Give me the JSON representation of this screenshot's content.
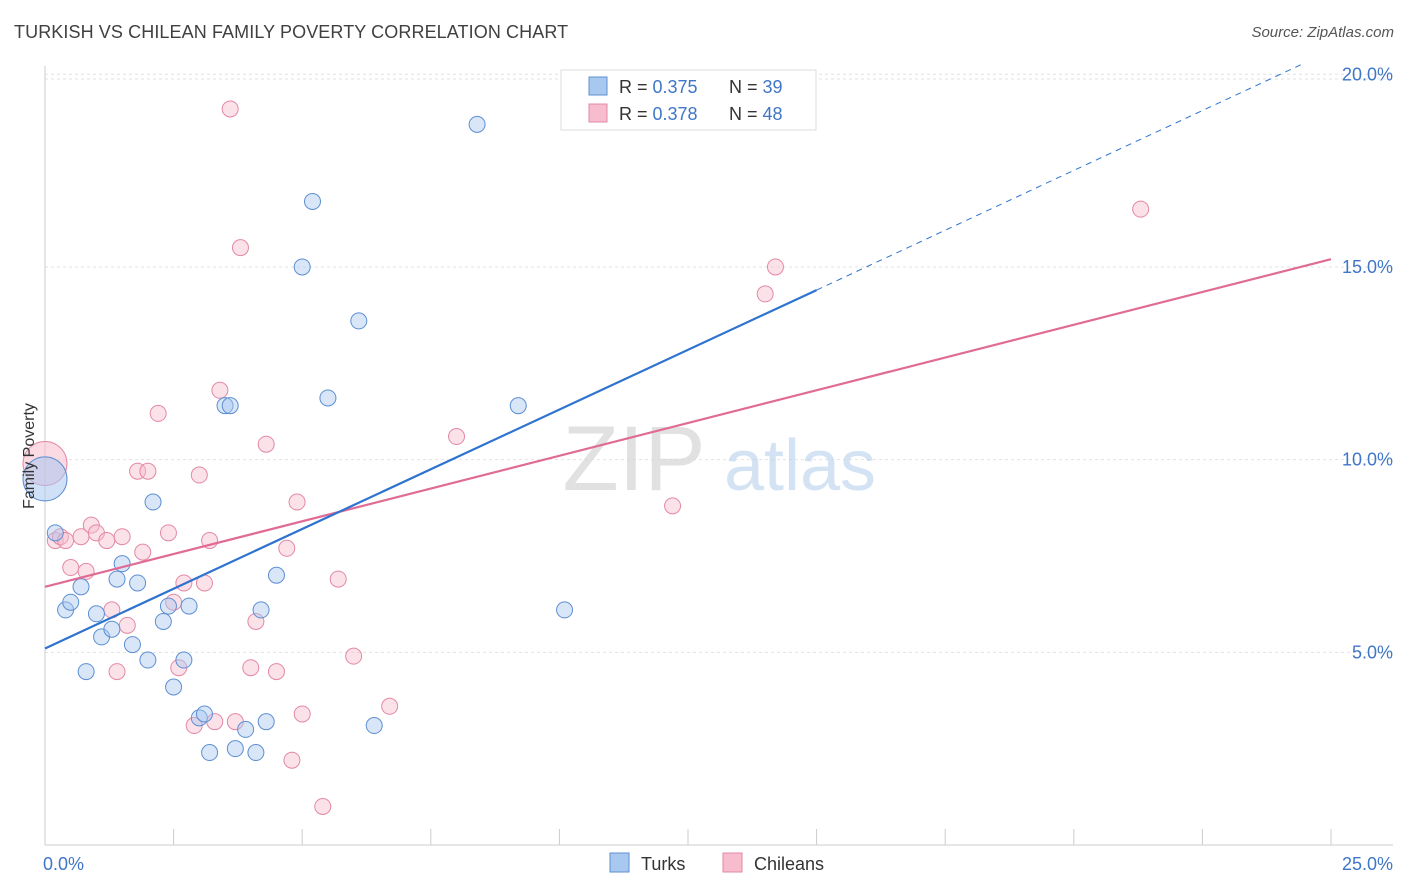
{
  "header": {
    "title": "TURKISH VS CHILEAN FAMILY POVERTY CORRELATION CHART",
    "source": "Source: ZipAtlas.com"
  },
  "watermark": {
    "zip": "ZIP",
    "atlas": "atlas"
  },
  "stats_box": {
    "rows": [
      {
        "r_label": "R = ",
        "r_value": "0.375",
        "n_label": "N = ",
        "n_value": "39"
      },
      {
        "r_label": "R = ",
        "r_value": "0.378",
        "n_label": "N = ",
        "n_value": "48"
      }
    ]
  },
  "colors": {
    "turks_fill": "#a9c8f0",
    "turks_stroke": "#5d8fd2",
    "turks_line": "#2e73cf",
    "chileans_fill": "#f7bccd",
    "chileans_stroke": "#e389a6",
    "chileans_line": "#e06b95",
    "tick_label": "#3f76c7",
    "value_text": "#3f76c7"
  },
  "chart_data": {
    "type": "scatter",
    "title": "TURKISH VS CHILEAN FAMILY POVERTY CORRELATION CHART",
    "xlabel": "",
    "ylabel": "Family Poverty",
    "xlim": [
      0,
      25
    ],
    "ylim": [
      0,
      20.5
    ],
    "x_tick_labels": [
      {
        "value": 0,
        "label": "0.0%"
      },
      {
        "value": 25,
        "label": "25.0%"
      }
    ],
    "y_tick_labels": [
      {
        "value": 5,
        "label": "5.0%"
      },
      {
        "value": 10,
        "label": "10.0%"
      },
      {
        "value": 15,
        "label": "15.0%"
      },
      {
        "value": 20,
        "label": "20.0%"
      }
    ],
    "legend": [
      "Turks",
      "Chileans"
    ],
    "series": [
      {
        "name": "Turks",
        "r": 0.375,
        "n": 39,
        "trend": {
          "x0": 0.0,
          "y0": 5.1,
          "x1": 15.0,
          "y1": 14.4,
          "dash_to_x": 24.5,
          "dash_to_y": 20.3
        },
        "points": [
          [
            0.0,
            9.5,
            "large"
          ],
          [
            0.2,
            8.1
          ],
          [
            0.4,
            6.1
          ],
          [
            0.5,
            6.3
          ],
          [
            0.7,
            6.7
          ],
          [
            0.8,
            4.5
          ],
          [
            1.0,
            6.0
          ],
          [
            1.1,
            5.4
          ],
          [
            1.3,
            5.6
          ],
          [
            1.4,
            6.9
          ],
          [
            1.5,
            7.3
          ],
          [
            1.7,
            5.2
          ],
          [
            1.8,
            6.8
          ],
          [
            2.0,
            4.8
          ],
          [
            2.1,
            8.9
          ],
          [
            2.3,
            5.8
          ],
          [
            2.4,
            6.2
          ],
          [
            2.5,
            4.1
          ],
          [
            2.7,
            4.8
          ],
          [
            2.8,
            6.2
          ],
          [
            3.0,
            3.3
          ],
          [
            3.1,
            3.4
          ],
          [
            3.2,
            2.4
          ],
          [
            3.5,
            11.4
          ],
          [
            3.6,
            11.4
          ],
          [
            3.7,
            2.5
          ],
          [
            3.9,
            3.0
          ],
          [
            4.1,
            2.4
          ],
          [
            4.2,
            6.1
          ],
          [
            4.3,
            3.2
          ],
          [
            4.5,
            7.0
          ],
          [
            5.0,
            15.0
          ],
          [
            5.2,
            16.7
          ],
          [
            5.5,
            11.6
          ],
          [
            6.1,
            13.6
          ],
          [
            6.4,
            3.1
          ],
          [
            8.4,
            18.7
          ],
          [
            9.2,
            11.4
          ],
          [
            10.1,
            6.1
          ]
        ]
      },
      {
        "name": "Chileans",
        "r": 0.378,
        "n": 48,
        "trend": {
          "x0": 0.0,
          "y0": 6.7,
          "x1": 25.0,
          "y1": 15.2
        },
        "points": [
          [
            0.0,
            9.9,
            "large"
          ],
          [
            0.2,
            7.9
          ],
          [
            0.3,
            8.0
          ],
          [
            0.4,
            7.9
          ],
          [
            0.5,
            7.2
          ],
          [
            0.7,
            8.0
          ],
          [
            0.8,
            7.1
          ],
          [
            0.9,
            8.3
          ],
          [
            1.0,
            8.1
          ],
          [
            1.2,
            7.9
          ],
          [
            1.3,
            6.1
          ],
          [
            1.4,
            4.5
          ],
          [
            1.5,
            8.0
          ],
          [
            1.6,
            5.7
          ],
          [
            1.8,
            9.7
          ],
          [
            1.9,
            7.6
          ],
          [
            2.0,
            9.7
          ],
          [
            2.2,
            11.2
          ],
          [
            2.4,
            8.1
          ],
          [
            2.5,
            6.3
          ],
          [
            2.6,
            4.6
          ],
          [
            2.7,
            6.8
          ],
          [
            2.9,
            3.1
          ],
          [
            3.0,
            9.6
          ],
          [
            3.1,
            6.8
          ],
          [
            3.2,
            7.9
          ],
          [
            3.4,
            11.8
          ],
          [
            3.6,
            19.1
          ],
          [
            3.7,
            3.2
          ],
          [
            3.8,
            15.5
          ],
          [
            4.0,
            4.6
          ],
          [
            4.1,
            5.8
          ],
          [
            4.3,
            10.4
          ],
          [
            4.5,
            4.5
          ],
          [
            4.7,
            7.7
          ],
          [
            4.8,
            2.2
          ],
          [
            4.9,
            8.9
          ],
          [
            5.0,
            3.4
          ],
          [
            5.4,
            1.0
          ],
          [
            5.7,
            6.9
          ],
          [
            6.0,
            4.9
          ],
          [
            6.7,
            3.6
          ],
          [
            8.0,
            10.6
          ],
          [
            12.2,
            8.8
          ],
          [
            14.0,
            14.3
          ],
          [
            14.2,
            15.0
          ],
          [
            21.3,
            16.5
          ],
          [
            3.3,
            3.2
          ]
        ]
      }
    ]
  }
}
